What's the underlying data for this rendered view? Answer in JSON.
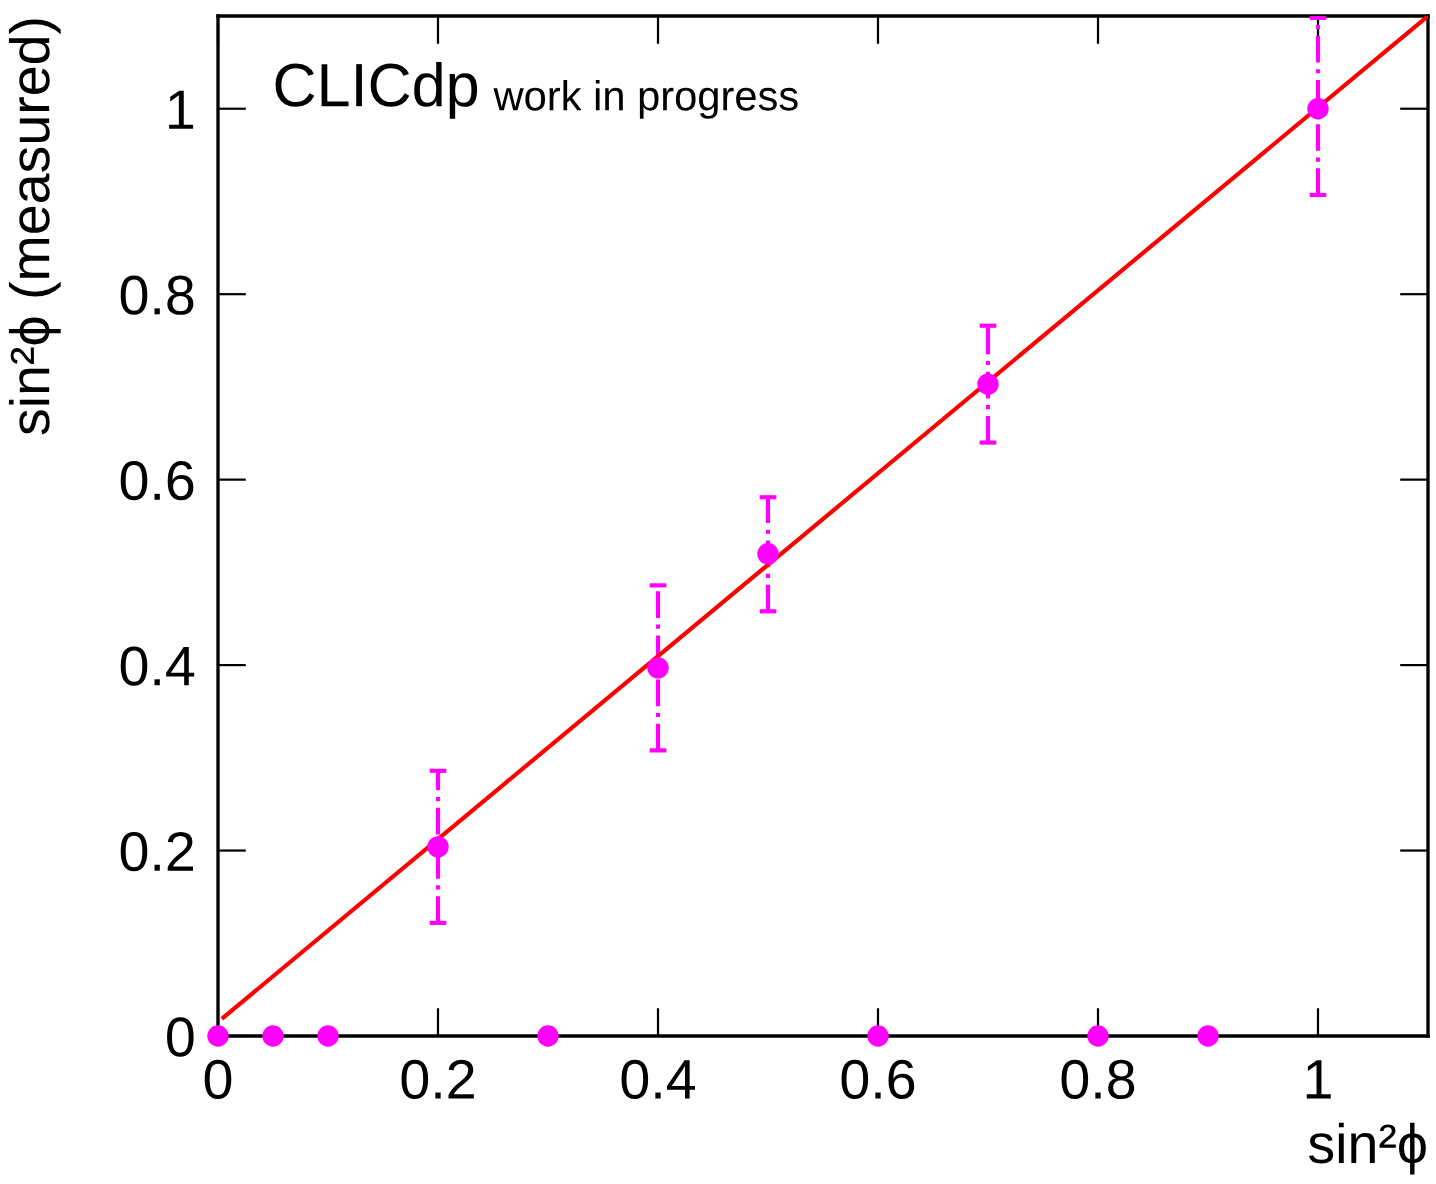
{
  "chart_data": {
    "type": "scatter",
    "xlabel": "sin²ϕ",
    "ylabel": "sin²ϕ (measured)",
    "annotations": [
      "CLICdp",
      "work in progress"
    ],
    "xlim": [
      0,
      1.1
    ],
    "ylim": [
      0,
      1.1
    ],
    "xticks": [
      0,
      0.2,
      0.4,
      0.6,
      0.8,
      1
    ],
    "yticks": [
      0,
      0.2,
      0.4,
      0.6,
      0.8,
      1
    ],
    "marker": "circle",
    "series": [
      {
        "color": "#ff00ff",
        "x": [
          0,
          0.05,
          0.1,
          0.2,
          0.3,
          0.4,
          0.5,
          0.6,
          0.7,
          0.8,
          0.9,
          1.0
        ],
        "values": [
          0,
          0,
          0,
          0.204,
          0,
          0.397,
          0.52,
          0,
          0.703,
          0,
          0,
          1.0
        ],
        "errors": [
          null,
          null,
          null,
          [
            0.122,
            0.286
          ],
          null,
          [
            0.308,
            0.486
          ],
          [
            0.458,
            0.581
          ],
          null,
          [
            0.64,
            0.766
          ],
          null,
          null,
          [
            0.907,
            1.098
          ]
        ],
        "line_style": "dashdot"
      },
      {
        "type": "line",
        "color": "#ff0000",
        "x": [
          0.005,
          1.1
        ],
        "values": [
          0.02,
          1.1
        ],
        "line_style": "solid",
        "marker": "none"
      }
    ]
  }
}
